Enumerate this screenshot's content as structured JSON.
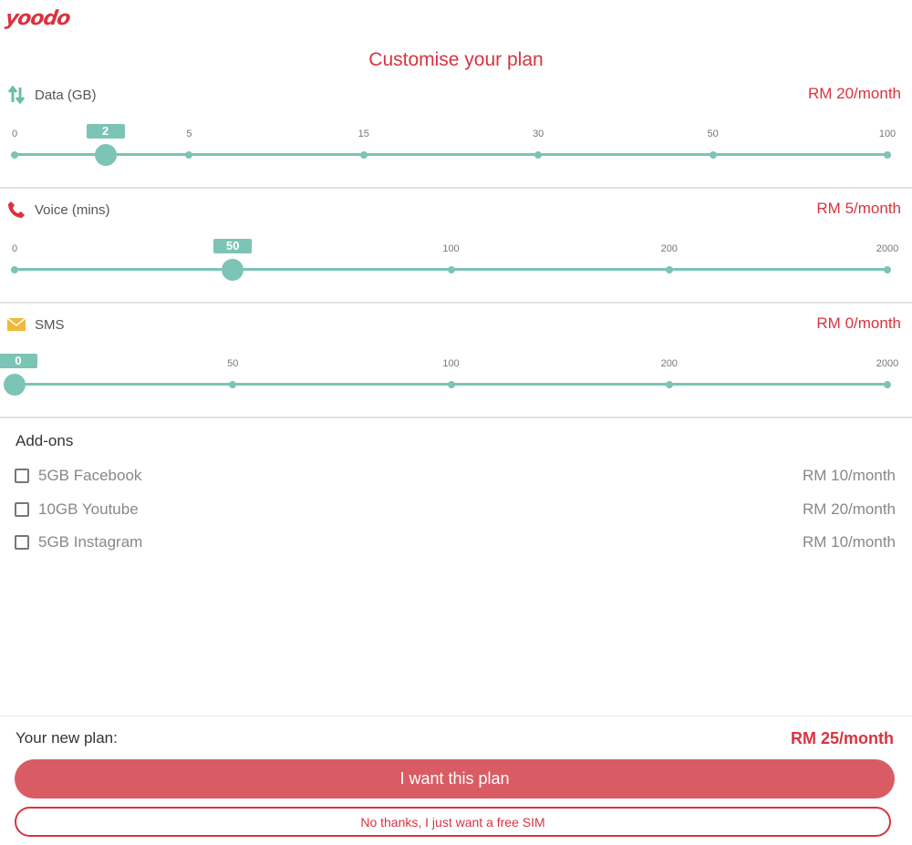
{
  "logo": "yoodo",
  "title": "Customise your plan",
  "colors": {
    "accent": "#d9333f",
    "slider": "#7cc4b5",
    "button": "#d95c64"
  },
  "sliders": [
    {
      "icon": "arrows-up-down-icon",
      "label": "Data (GB)",
      "price": "RM 20/month",
      "ticks": [
        "0",
        "5",
        "15",
        "30",
        "50",
        "100"
      ],
      "value": "2"
    },
    {
      "icon": "phone-icon",
      "label": "Voice (mins)",
      "price": "RM 5/month",
      "ticks": [
        "0",
        "50",
        "100",
        "200",
        "2000"
      ],
      "value": "50"
    },
    {
      "icon": "envelope-icon",
      "label": "SMS",
      "price": "RM 0/month",
      "ticks": [
        "0",
        "50",
        "100",
        "200",
        "2000"
      ],
      "value": "0"
    }
  ],
  "addons": {
    "title": "Add-ons",
    "items": [
      {
        "label": "5GB Facebook",
        "price": "RM 10/month",
        "checked": false
      },
      {
        "label": "10GB Youtube",
        "price": "RM 20/month",
        "checked": false
      },
      {
        "label": "5GB Instagram",
        "price": "RM 10/month",
        "checked": false
      }
    ]
  },
  "footer": {
    "plan_label": "Your new plan:",
    "plan_total": "RM 25/month",
    "primary_button": "I want this plan",
    "secondary_button": "No thanks, I just want a free SIM"
  }
}
